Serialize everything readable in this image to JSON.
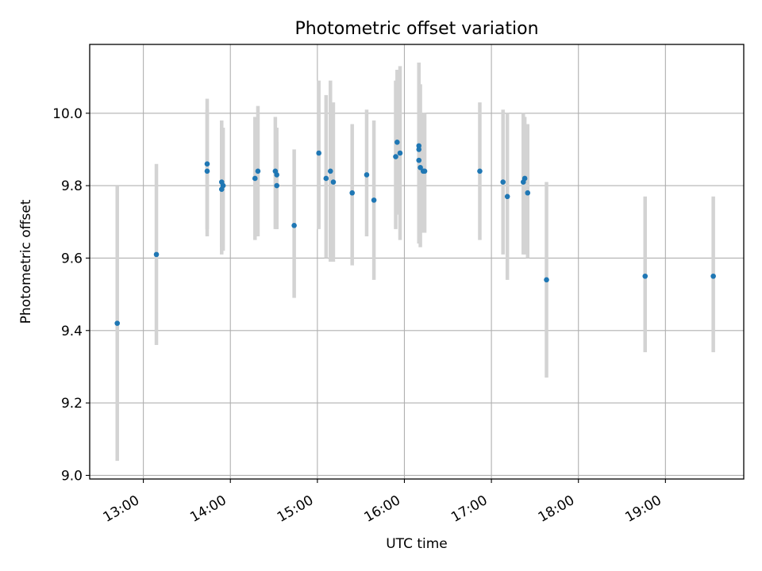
{
  "chart_data": {
    "type": "scatter",
    "title": "Photometric offset variation",
    "xlabel": "UTC time",
    "ylabel": "Photometric offset",
    "x_type": "time",
    "xlim": [
      "12:23",
      "19:54"
    ],
    "ylim": [
      8.99,
      10.19
    ],
    "x_ticks": [
      "13:00",
      "14:00",
      "15:00",
      "16:00",
      "17:00",
      "18:00",
      "19:00"
    ],
    "y_ticks": [
      "9.0",
      "9.2",
      "9.4",
      "9.6",
      "9.8",
      "10.0"
    ],
    "grid": true,
    "colors": {
      "point": "#1f77b4",
      "errorbar": "#d3d3d3"
    },
    "points": [
      {
        "x": "12:42",
        "y": 9.42,
        "low": 9.04,
        "high": 9.8
      },
      {
        "x": "13:09",
        "y": 9.61,
        "low": 9.36,
        "high": 9.86
      },
      {
        "x": "13:44",
        "y": 9.86,
        "low": 9.68,
        "high": 10.04
      },
      {
        "x": "13:44",
        "y": 9.84,
        "low": 9.66,
        "high": 10.01
      },
      {
        "x": "13:54",
        "y": 9.81,
        "low": 9.63,
        "high": 9.98
      },
      {
        "x": "13:54",
        "y": 9.79,
        "low": 9.61,
        "high": 9.96
      },
      {
        "x": "13:55",
        "y": 9.8,
        "low": 9.62,
        "high": 9.96
      },
      {
        "x": "14:17",
        "y": 9.82,
        "low": 9.65,
        "high": 9.99
      },
      {
        "x": "14:19",
        "y": 9.84,
        "low": 9.66,
        "high": 10.02
      },
      {
        "x": "14:31",
        "y": 9.84,
        "low": 9.68,
        "high": 9.99
      },
      {
        "x": "14:32",
        "y": 9.83,
        "low": 9.68,
        "high": 9.96
      },
      {
        "x": "14:32",
        "y": 9.8,
        "low": 9.68,
        "high": 9.92
      },
      {
        "x": "14:44",
        "y": 9.69,
        "low": 9.49,
        "high": 9.9
      },
      {
        "x": "15:01",
        "y": 9.89,
        "low": 9.68,
        "high": 10.09
      },
      {
        "x": "15:06",
        "y": 9.82,
        "low": 9.6,
        "high": 10.05
      },
      {
        "x": "15:09",
        "y": 9.84,
        "low": 9.59,
        "high": 10.09
      },
      {
        "x": "15:11",
        "y": 9.81,
        "low": 9.59,
        "high": 10.03
      },
      {
        "x": "15:24",
        "y": 9.78,
        "low": 9.58,
        "high": 9.97
      },
      {
        "x": "15:34",
        "y": 9.83,
        "low": 9.66,
        "high": 10.01
      },
      {
        "x": "15:39",
        "y": 9.76,
        "low": 9.54,
        "high": 9.98
      },
      {
        "x": "15:54",
        "y": 9.88,
        "low": 9.68,
        "high": 10.09
      },
      {
        "x": "15:55",
        "y": 9.92,
        "low": 9.72,
        "high": 10.12
      },
      {
        "x": "15:57",
        "y": 9.89,
        "low": 9.65,
        "high": 10.13
      },
      {
        "x": "16:10",
        "y": 9.91,
        "low": 9.67,
        "high": 10.14
      },
      {
        "x": "16:10",
        "y": 9.9,
        "low": 9.66,
        "high": 10.12
      },
      {
        "x": "16:10",
        "y": 9.87,
        "low": 9.64,
        "high": 10.09
      },
      {
        "x": "16:11",
        "y": 9.85,
        "low": 9.63,
        "high": 10.08
      },
      {
        "x": "16:13",
        "y": 9.84,
        "low": 9.67,
        "high": 10.0
      },
      {
        "x": "16:14",
        "y": 9.84,
        "low": 9.67,
        "high": 10.0
      },
      {
        "x": "16:52",
        "y": 9.84,
        "low": 9.65,
        "high": 10.03
      },
      {
        "x": "17:08",
        "y": 9.81,
        "low": 9.61,
        "high": 10.01
      },
      {
        "x": "17:11",
        "y": 9.77,
        "low": 9.54,
        "high": 10.0
      },
      {
        "x": "17:22",
        "y": 9.81,
        "low": 9.61,
        "high": 10.0
      },
      {
        "x": "17:23",
        "y": 9.82,
        "low": 9.61,
        "high": 9.99
      },
      {
        "x": "17:25",
        "y": 9.78,
        "low": 9.6,
        "high": 9.97
      },
      {
        "x": "17:38",
        "y": 9.54,
        "low": 9.27,
        "high": 9.81
      },
      {
        "x": "18:46",
        "y": 9.55,
        "low": 9.34,
        "high": 9.77
      },
      {
        "x": "19:33",
        "y": 9.55,
        "low": 9.34,
        "high": 9.77
      }
    ]
  }
}
